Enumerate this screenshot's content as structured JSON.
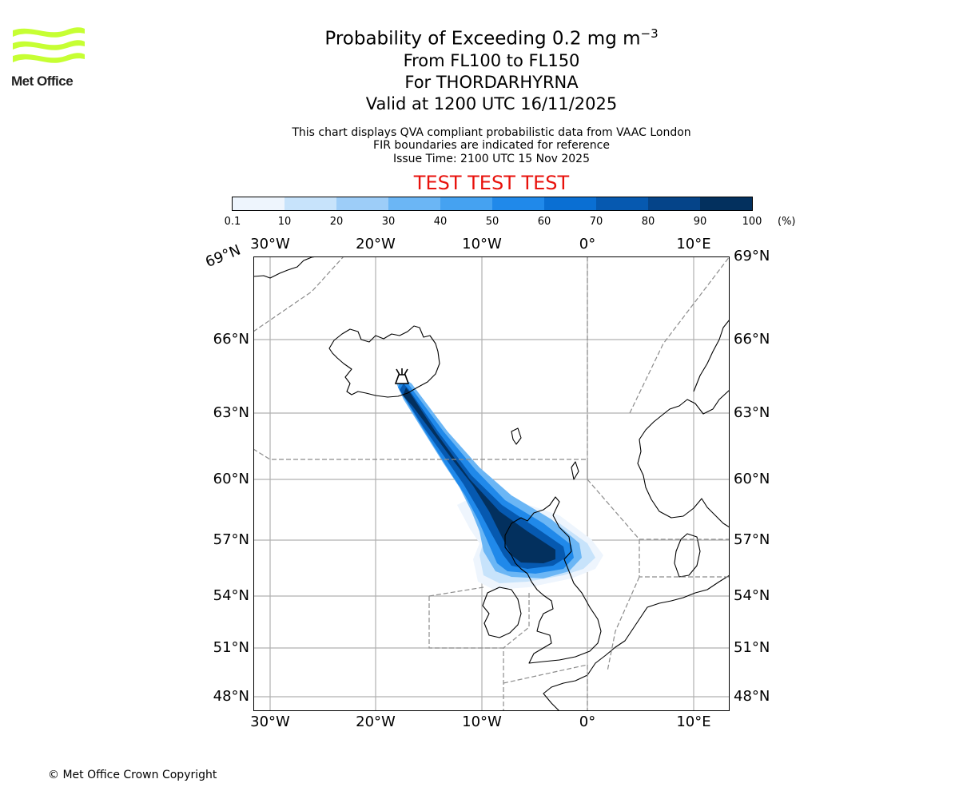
{
  "header": {
    "title_main": "Probability of Exceeding 0.2 mg m",
    "title_exp": "−3",
    "flight_levels": "From FL100 to FL150",
    "volcano": "For THORDARHYRNA",
    "valid_time": "Valid at 1200 UTC 16/11/2025",
    "note_line1": "This chart displays QVA compliant probabilistic data from VAAC London",
    "note_line2": "FIR boundaries are indicated for reference",
    "issue_time": "Issue Time: 2100 UTC 15 Nov 2025",
    "test_banner": "TEST TEST TEST"
  },
  "logo": {
    "text": "Met Office",
    "color": "#c6ff33"
  },
  "colorbar": {
    "ticks": [
      "0.1",
      "10",
      "20",
      "30",
      "40",
      "50",
      "60",
      "70",
      "80",
      "90",
      "100"
    ],
    "unit": "(%)",
    "colors": [
      "#eef5fd",
      "#c7e3fb",
      "#9dcdf8",
      "#6bb6f5",
      "#45a2f1",
      "#2089ea",
      "#0a6fd3",
      "#0659b0",
      "#054489",
      "#03305e"
    ]
  },
  "axes": {
    "lon_labels": [
      "30°W",
      "20°W",
      "10°W",
      "0°",
      "10°E"
    ],
    "lat_labels_left": [
      "66°N",
      "63°N",
      "60°N",
      "57°N",
      "54°N",
      "51°N",
      "48°N"
    ],
    "lat_labels_right": [
      "69°N",
      "66°N",
      "63°N",
      "60°N",
      "57°N",
      "54°N",
      "51°N",
      "48°N"
    ],
    "rotated_label": "69°N"
  },
  "footer": {
    "copyright": "© Met Office Crown Copyright"
  }
}
